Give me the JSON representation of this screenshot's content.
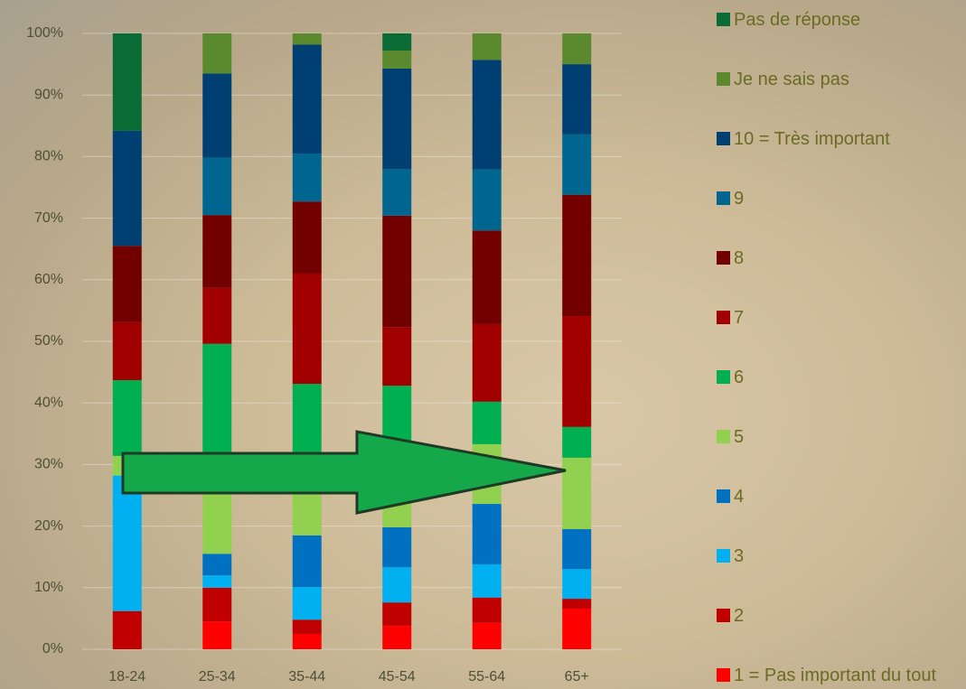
{
  "chart_data": {
    "type": "stacked-bar",
    "categories": [
      "18-24",
      "25-34",
      "35-44",
      "45-54",
      "55-64",
      "65+"
    ],
    "series": [
      {
        "name": "1 = Pas important du tout",
        "color": "#ff0000",
        "values": [
          0,
          4.5,
          2.5,
          3.8,
          4.3,
          6.6
        ]
      },
      {
        "name": "2",
        "color": "#c00000",
        "values": [
          6.2,
          5.5,
          2.3,
          3.8,
          4.1,
          1.6
        ]
      },
      {
        "name": "3",
        "color": "#00b0f0",
        "values": [
          22,
          2.0,
          5.3,
          5.7,
          5.4,
          4.8
        ]
      },
      {
        "name": "4",
        "color": "#0070c0",
        "values": [
          0,
          3.5,
          8.4,
          6.5,
          9.8,
          6.5
        ]
      },
      {
        "name": "5",
        "color": "#92d050",
        "values": [
          3.2,
          14.5,
          11.5,
          10.2,
          9.7,
          11.6
        ]
      },
      {
        "name": "6",
        "color": "#00b050",
        "values": [
          12.3,
          19.6,
          13.1,
          12.8,
          6.9,
          5.0
        ]
      },
      {
        "name": "7",
        "color": "#a00000",
        "values": [
          9.4,
          9.1,
          17.9,
          9.5,
          12.6,
          18.0
        ]
      },
      {
        "name": "8",
        "color": "#720000",
        "values": [
          12.4,
          11.8,
          11.7,
          18.1,
          15.2,
          19.7
        ]
      },
      {
        "name": "9",
        "color": "#00668f",
        "values": [
          0,
          9.3,
          7.8,
          7.6,
          9.9,
          9.8
        ]
      },
      {
        "name": "10 = Très important",
        "color": "#003f72",
        "values": [
          18.7,
          13.7,
          17.7,
          16.3,
          17.8,
          11.4
        ]
      },
      {
        "name": "Je ne sais pas",
        "color": "#5b8a2e",
        "values": [
          0,
          6.5,
          1.8,
          2.9,
          4.3,
          5.0
        ]
      },
      {
        "name": "Pas de réponse",
        "color": "#0b6b34",
        "values": [
          15.8,
          0,
          0,
          2.8,
          0,
          0
        ]
      }
    ],
    "ylim": [
      0,
      100
    ],
    "yticks": [
      {
        "value": 0,
        "label": "0%"
      },
      {
        "value": 10,
        "label": "10%"
      },
      {
        "value": 20,
        "label": "20%"
      },
      {
        "value": 30,
        "label": "30%"
      },
      {
        "value": 40,
        "label": "40%"
      },
      {
        "value": 50,
        "label": "50%"
      },
      {
        "value": 60,
        "label": "60%"
      },
      {
        "value": 70,
        "label": "70%"
      },
      {
        "value": 80,
        "label": "80%"
      },
      {
        "value": 90,
        "label": "90%"
      },
      {
        "value": 100,
        "label": "100%"
      }
    ],
    "grid": true
  }
}
